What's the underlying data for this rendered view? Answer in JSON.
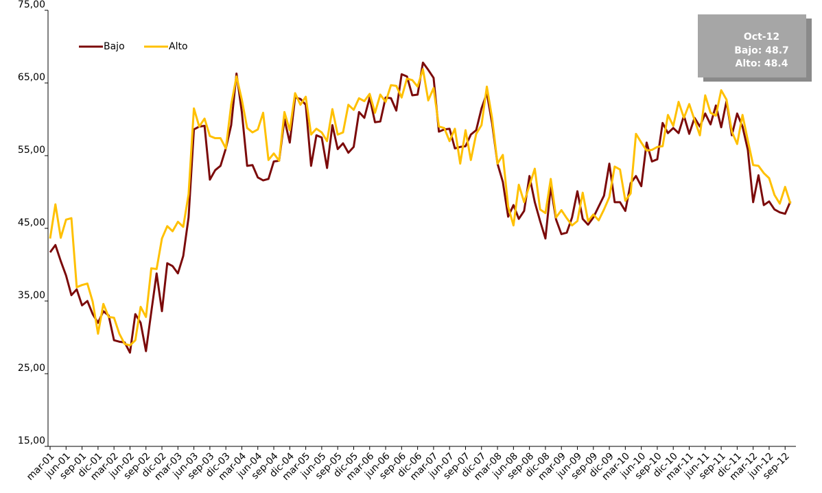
{
  "chart_data": {
    "type": "line",
    "categories": [
      "mar-01",
      null,
      null,
      "jun-01",
      null,
      null,
      "sep-01",
      null,
      null,
      "dic-01",
      null,
      null,
      "mar-02",
      null,
      null,
      "jun-02",
      null,
      null,
      "sep-02",
      null,
      null,
      "dic-02",
      null,
      null,
      "mar-03",
      null,
      null,
      "jun-03",
      null,
      null,
      "sep-03",
      null,
      null,
      "dic-03",
      null,
      null,
      "mar-04",
      null,
      null,
      "jun-04",
      null,
      null,
      "sep-04",
      null,
      null,
      "dic-04",
      null,
      null,
      "mar-05",
      null,
      null,
      "jun-05",
      null,
      null,
      "sep-05",
      null,
      null,
      "dic-05",
      null,
      null,
      "mar-06",
      null,
      null,
      "jun-06",
      null,
      null,
      "sep-06",
      null,
      null,
      "dic-06",
      null,
      null,
      "mar-07",
      null,
      null,
      "jun-07",
      null,
      null,
      "sep-07",
      null,
      null,
      "dic-07",
      null,
      null,
      "mar-08",
      null,
      null,
      "jun-08",
      null,
      null,
      "sep-08",
      null,
      null,
      "dic-08",
      null,
      null,
      "mar-09",
      null,
      null,
      "jun-09",
      null,
      null,
      "sep-09",
      null,
      null,
      "dic-09",
      null,
      null,
      "mar-10",
      null,
      null,
      "jun-10",
      null,
      null,
      "sep-10",
      null,
      null,
      "dic-10",
      null,
      null,
      "mar-11",
      null,
      null,
      "jun-11",
      null,
      null,
      "sep-11",
      null,
      null,
      "dic-11",
      null,
      null,
      "mar-12",
      null,
      null,
      "jun-12",
      null,
      null,
      "sep-12",
      null
    ],
    "series": [
      {
        "name": "Bajo",
        "color": "#7b0a0a",
        "values": [
          41.7,
          42.7,
          40.5,
          38.5,
          35.8,
          36.6,
          34.4,
          35.0,
          33.2,
          32.0,
          33.6,
          33.0,
          29.6,
          29.4,
          29.3,
          27.9,
          33.2,
          32.0,
          28.1,
          33.5,
          38.8,
          33.6,
          40.2,
          39.8,
          38.8,
          41.2,
          46.5,
          58.6,
          59.0,
          59.1,
          51.7,
          53.0,
          53.6,
          56.0,
          59.2,
          66.3,
          61.0,
          53.6,
          53.7,
          52.0,
          51.6,
          51.8,
          54.2,
          54.3,
          60.0,
          56.8,
          63.0,
          62.8,
          62.0,
          53.6,
          57.8,
          57.5,
          53.3,
          59.2,
          55.9,
          56.7,
          55.4,
          56.2,
          61.0,
          60.2,
          63.0,
          59.6,
          59.7,
          63.0,
          62.9,
          61.2,
          66.2,
          65.9,
          63.3,
          63.4,
          67.8,
          66.8,
          65.7,
          58.3,
          58.6,
          58.7,
          56.0,
          56.2,
          56.3,
          57.9,
          58.5,
          61.5,
          63.6,
          59.4,
          53.9,
          51.4,
          46.6,
          48.2,
          46.3,
          47.4,
          52.2,
          48.6,
          46.0,
          43.6,
          50.7,
          46.2,
          44.2,
          44.4,
          46.5,
          50.1,
          46.3,
          45.5,
          46.5,
          48.0,
          49.5,
          53.9,
          48.6,
          48.6,
          47.4,
          51.2,
          52.2,
          50.8,
          56.8,
          54.2,
          54.5,
          59.5,
          58.1,
          58.8,
          58.1,
          60.5,
          58.0,
          60.2,
          59.0,
          60.8,
          59.3,
          61.9,
          58.9,
          62.5,
          57.8,
          60.8,
          59.0,
          55.8,
          48.6,
          52.3,
          48.2,
          48.7,
          47.6,
          47.2,
          47.0,
          48.7
        ]
      },
      {
        "name": "Alto",
        "color": "#ffc000",
        "values": [
          43.6,
          48.3,
          43.7,
          46.2,
          46.4,
          36.9,
          37.2,
          37.4,
          34.9,
          30.5,
          34.6,
          32.8,
          32.7,
          30.5,
          29.1,
          28.9,
          29.6,
          34.2,
          32.8,
          39.5,
          39.4,
          43.6,
          45.3,
          44.6,
          45.9,
          45.2,
          49.7,
          61.5,
          59.0,
          60.1,
          57.7,
          57.4,
          57.4,
          56.0,
          62.0,
          65.9,
          62.7,
          58.8,
          58.2,
          58.6,
          60.9,
          54.4,
          55.3,
          54.3,
          61.0,
          58.5,
          63.6,
          62.0,
          63.1,
          57.9,
          58.7,
          58.2,
          57.0,
          61.4,
          57.9,
          58.2,
          62.0,
          61.3,
          62.9,
          62.5,
          63.5,
          60.9,
          63.4,
          62.4,
          64.7,
          64.6,
          63.0,
          65.6,
          65.4,
          64.5,
          66.9,
          62.6,
          64.3,
          59.0,
          58.8,
          57.0,
          58.7,
          53.9,
          58.5,
          54.4,
          58.0,
          59.2,
          64.5,
          60.1,
          53.9,
          55.1,
          48.0,
          45.4,
          51.0,
          48.6,
          50.9,
          53.2,
          47.6,
          47.1,
          51.8,
          46.5,
          47.5,
          46.4,
          45.4,
          46.0,
          49.9,
          46.0,
          46.9,
          46.1,
          47.6,
          49.3,
          53.5,
          53.1,
          48.8,
          49.8,
          58.0,
          56.8,
          55.7,
          55.8,
          56.2,
          56.3,
          60.6,
          59.1,
          62.4,
          60.2,
          62.1,
          59.9,
          57.8,
          63.3,
          60.9,
          60.5,
          64.0,
          62.7,
          58.3,
          56.6,
          60.6,
          57.1,
          53.7,
          53.6,
          52.6,
          51.9,
          49.6,
          48.4,
          50.7,
          48.4
        ]
      }
    ],
    "ylim": [
      15,
      75
    ],
    "yticks": [
      {
        "value": 15,
        "label": "15,00"
      },
      {
        "value": 25,
        "label": "25,00"
      },
      {
        "value": 35,
        "label": "35,00"
      },
      {
        "value": 45,
        "label": "45,00"
      },
      {
        "value": 55,
        "label": "55,00"
      },
      {
        "value": 65,
        "label": "65,00"
      },
      {
        "value": 75,
        "label": "75,00"
      }
    ],
    "legend": "top-left",
    "annotation": {
      "title": "Oct-12",
      "lines": [
        "Bajo: 48.7",
        "Alto: 48.4"
      ]
    }
  }
}
